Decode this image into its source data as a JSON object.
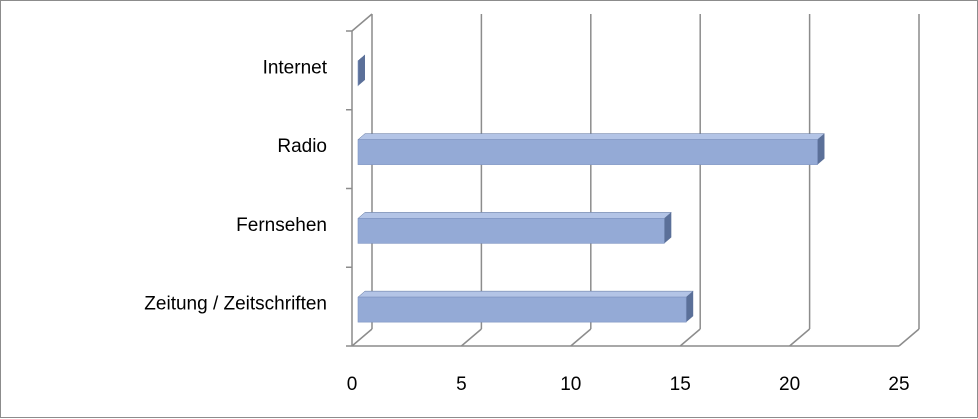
{
  "chart_data": {
    "type": "bar",
    "orientation": "horizontal",
    "style": "3d",
    "categories": [
      "Zeitung / Zeitschriften",
      "Fernsehen",
      "Radio",
      "Internet"
    ],
    "values": [
      15,
      14,
      21,
      0
    ],
    "xlim": [
      0,
      25
    ],
    "xticks": [
      "0",
      "5",
      "10",
      "15",
      "20",
      "25"
    ],
    "grid": true,
    "legend": "none",
    "colors": {
      "bar_front": "#94aad6",
      "bar_top": "#b3c4e6",
      "bar_side": "#5b7099",
      "grid": "#8c8c8c"
    }
  }
}
